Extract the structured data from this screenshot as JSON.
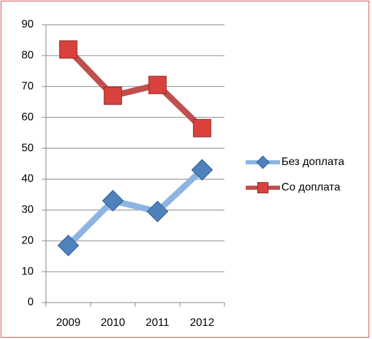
{
  "chart_data": {
    "type": "line",
    "categories": [
      "2009",
      "2010",
      "2011",
      "2012"
    ],
    "series": [
      {
        "name": "Без доплата",
        "color": "#8db4e2",
        "marker_color": "#4f81bd",
        "marker": "diamond",
        "values": [
          18.5,
          33,
          29.5,
          43
        ]
      },
      {
        "name": "Со доплата",
        "color": "#c0504d",
        "marker_color": "#d9413c",
        "marker": "square",
        "values": [
          82,
          67,
          70.5,
          56.5
        ]
      }
    ],
    "ylim": [
      0,
      90
    ],
    "yticks": [
      0,
      10,
      20,
      30,
      40,
      50,
      60,
      70,
      80,
      90
    ],
    "grid": true,
    "legend": "right"
  }
}
